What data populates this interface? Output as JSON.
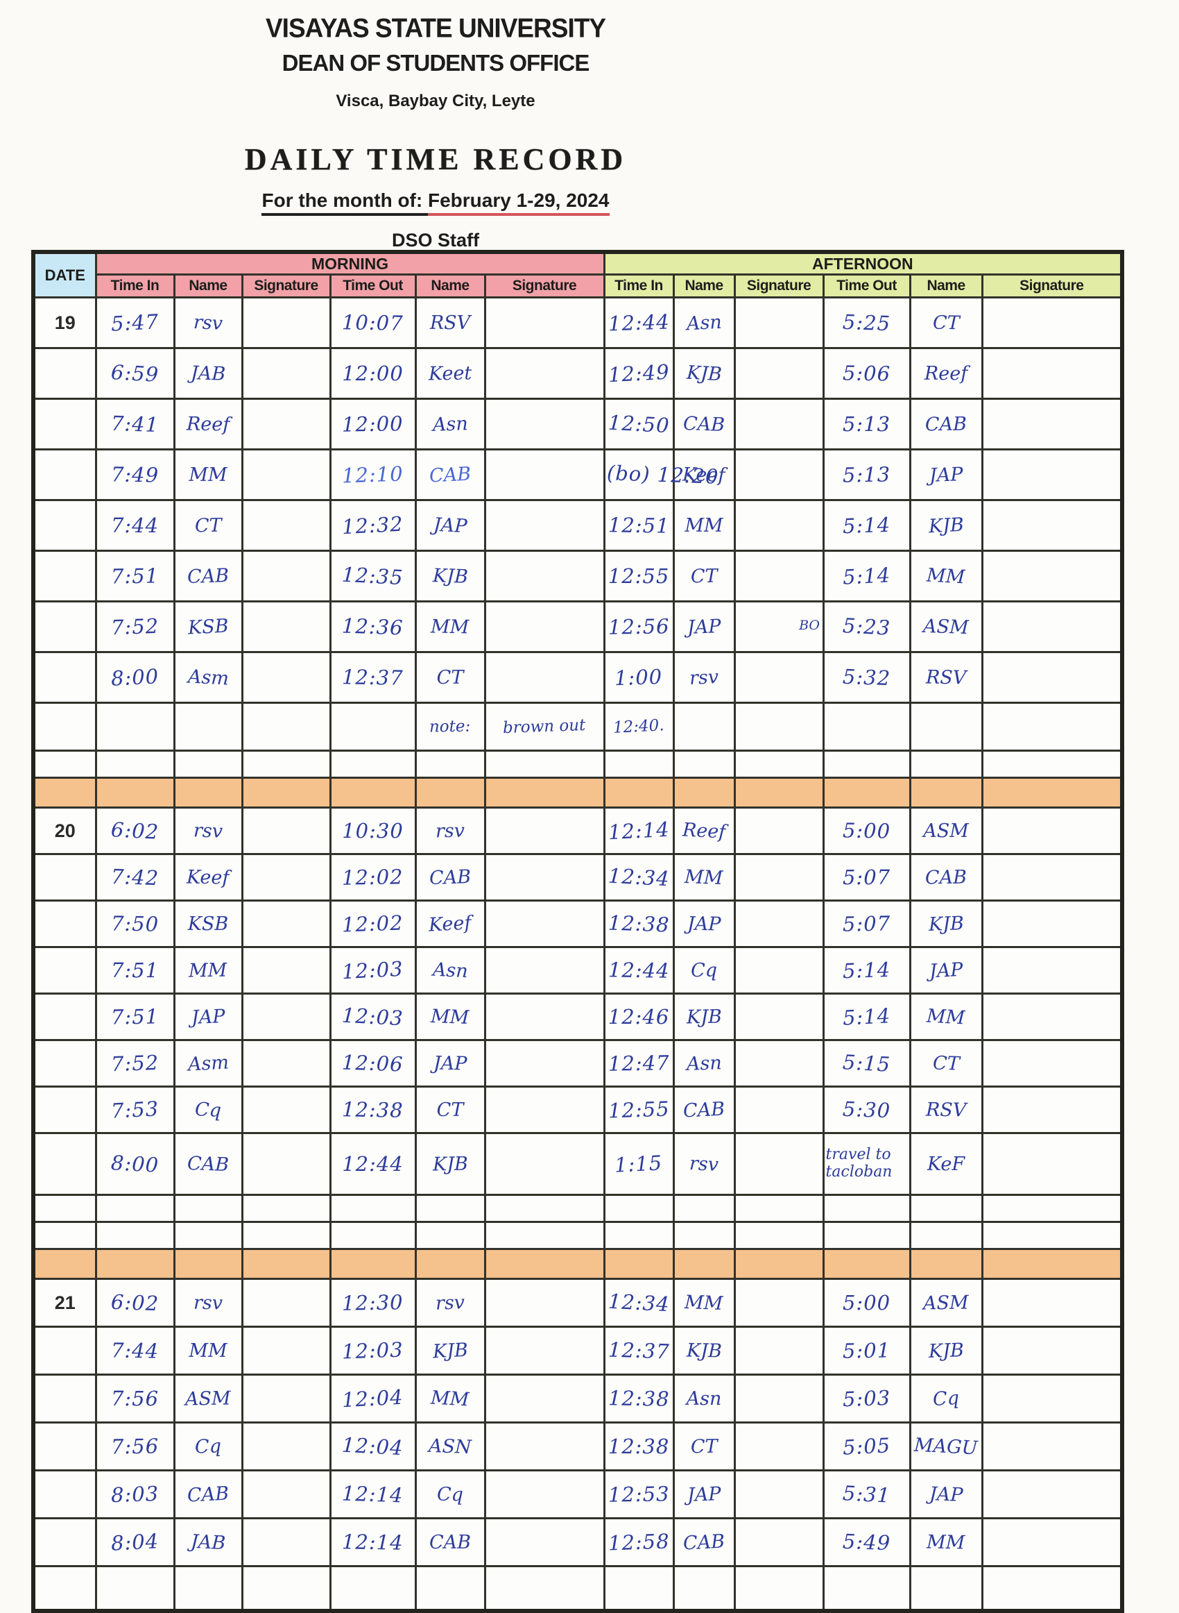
{
  "header": {
    "university": "VISAYAS STATE UNIVERSITY",
    "office": "DEAN OF STUDENTS OFFICE",
    "address": "Visca, Baybay City, Leyte",
    "doc_title": "DAILY TIME RECORD",
    "month_label": "For the month of:",
    "month_value": "February 1-29, 2024",
    "subtitle": "DSO Staff"
  },
  "table": {
    "date_header": "DATE",
    "sections": [
      {
        "label": "MORNING",
        "color": "#f1a1a7"
      },
      {
        "label": "AFTERNOON",
        "color": "#e2eca4"
      }
    ],
    "columns": [
      "Time In",
      "Name",
      "Signature",
      "Time Out",
      "Name",
      "Signature"
    ],
    "colors": {
      "date_header_bg": "#c9e8f5",
      "morning_bg": "#f1a1a7",
      "afternoon_bg": "#e2eca4",
      "separator_bg": "#f5c18d",
      "ink": "#2d3c9b",
      "ink_light": "#4a67d3",
      "border": "#32322b",
      "month_red": "#d4545c"
    },
    "blocks": [
      {
        "date": "19",
        "rows": [
          [
            "5:47",
            "rsv",
            "~",
            "10:07",
            "RSV",
            "~",
            "12:44",
            "Asn",
            "~",
            "5:25",
            "CT",
            "~"
          ],
          [
            "6:59",
            "JAB",
            "~",
            "12:00",
            "Keet",
            "~",
            "12:49",
            "KJB",
            "~",
            "5:06",
            "Reef",
            "~"
          ],
          [
            "7:41",
            "Reef",
            "~",
            "12:00",
            "Asn",
            "~",
            "12:50",
            "CAB",
            "~",
            "5:13",
            "CAB",
            "~"
          ],
          [
            "7:49",
            "MM",
            "~",
            "12:10",
            "CAB",
            "~",
            "(bo) 12:20",
            "Keef",
            "~",
            "5:13",
            "JAP",
            "~"
          ],
          [
            "7:44",
            "CT",
            "~",
            "12:32",
            "JAP",
            "~",
            "12:51",
            "MM",
            "~",
            "5:14",
            "KJB",
            "~"
          ],
          [
            "7:51",
            "CAB",
            "~",
            "12:35",
            "KJB",
            "~",
            "12:55",
            "CT",
            "~",
            "5:14",
            "MM",
            "~"
          ],
          [
            "7:52",
            "KSB",
            "~",
            "12:36",
            "MM",
            "~",
            "12:56",
            "JAP",
            "~BO",
            "5:23",
            "ASM",
            "~"
          ],
          [
            "8:00",
            "Asm",
            "~",
            "12:37",
            "CT",
            "~",
            "1:00",
            "rsv",
            "~",
            "5:32",
            "RSV",
            "~"
          ],
          [
            "",
            "",
            "",
            "",
            "note:",
            "brown out",
            "12:40.",
            "",
            "",
            "",
            "",
            ""
          ],
          [
            "",
            "",
            "",
            "",
            "",
            "",
            "",
            "",
            "",
            "",
            "",
            ""
          ]
        ]
      },
      {
        "date": "20",
        "rows": [
          [
            "6:02",
            "rsv",
            "~",
            "10:30",
            "rsv",
            "~",
            "12:14",
            "Reef",
            "~",
            "5:00",
            "ASM",
            "~"
          ],
          [
            "7:42",
            "Keef",
            "~",
            "12:02",
            "CAB",
            "~",
            "12:34",
            "MM",
            "~",
            "5:07",
            "CAB",
            "~"
          ],
          [
            "7:50",
            "KSB",
            "~",
            "12:02",
            "Keef",
            "~",
            "12:38",
            "JAP",
            "~",
            "5:07",
            "KJB",
            "~"
          ],
          [
            "7:51",
            "MM",
            "~",
            "12:03",
            "Asn",
            "~",
            "12:44",
            "Cq",
            "~",
            "5:14",
            "JAP",
            "~"
          ],
          [
            "7:51",
            "JAP",
            "~",
            "12:03",
            "MM",
            "~",
            "12:46",
            "KJB",
            "~",
            "5:14",
            "MM",
            "~"
          ],
          [
            "7:52",
            "Asm",
            "~",
            "12:06",
            "JAP",
            "~",
            "12:47",
            "Asn",
            "~",
            "5:15",
            "CT",
            "~"
          ],
          [
            "7:53",
            "Cq",
            "~",
            "12:38",
            "CT",
            "~",
            "12:55",
            "CAB",
            "~",
            "5:30",
            "RSV",
            "~"
          ],
          [
            "8:00",
            "CAB",
            "~",
            "12:44",
            "KJB",
            "~",
            "1:15",
            "rsv",
            "~",
            "travel to tacloban",
            "KeF",
            "~"
          ],
          [
            "",
            "",
            "",
            "",
            "",
            "",
            "",
            "",
            "",
            "",
            "",
            ""
          ],
          [
            "",
            "",
            "",
            "",
            "",
            "",
            "",
            "",
            "",
            "",
            "",
            ""
          ]
        ]
      },
      {
        "date": "21",
        "rows": [
          [
            "6:02",
            "rsv",
            "~",
            "12:30",
            "rsv",
            "~",
            "12:34",
            "MM",
            "~",
            "5:00",
            "ASM",
            "~"
          ],
          [
            "7:44",
            "MM",
            "~",
            "12:03",
            "KJB",
            "~",
            "12:37",
            "KJB",
            "~",
            "5:01",
            "KJB",
            "~"
          ],
          [
            "7:56",
            "ASM",
            "~",
            "12:04",
            "MM",
            "~",
            "12:38",
            "Asn",
            "~",
            "5:03",
            "Cq",
            "~"
          ],
          [
            "7:56",
            "Cq",
            "~",
            "12:04",
            "ASN",
            "~",
            "12:38",
            "CT",
            "~",
            "5:05",
            "MAGU",
            "~"
          ],
          [
            "8:03",
            "CAB",
            "~",
            "12:14",
            "Cq",
            "~",
            "12:53",
            "JAP",
            "~",
            "5:31",
            "JAP",
            "~"
          ],
          [
            "8:04",
            "JAB",
            "~",
            "12:14",
            "CAB",
            "~",
            "12:58",
            "CAB",
            "~",
            "5:49",
            "MM",
            "~"
          ],
          [
            "",
            "",
            "",
            "",
            "",
            "",
            "",
            "",
            "",
            "",
            "",
            ""
          ]
        ]
      }
    ],
    "light_ink_cells": [
      [
        0,
        3,
        3
      ],
      [
        0,
        3,
        4
      ],
      [
        0,
        3,
        5
      ]
    ],
    "travel_cell": [
      1,
      7,
      9
    ]
  }
}
